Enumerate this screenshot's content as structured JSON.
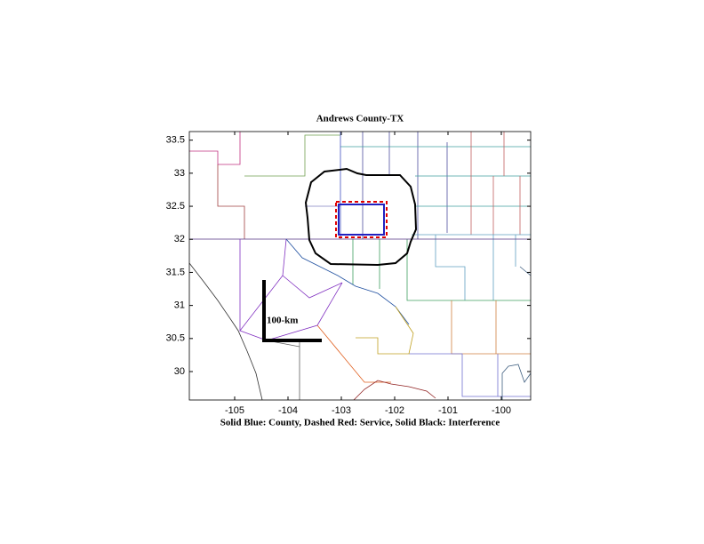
{
  "chart_data": {
    "type": "map",
    "title": "Andrews County-TX",
    "xlabel": "Solid Blue: County, Dashed Red: Service, Solid Black: Interference",
    "scale_label": "100-km",
    "xlim": [
      -105.85,
      -99.45
    ],
    "ylim": [
      29.57,
      33.63
    ],
    "xticks": [
      -105,
      -104,
      -103,
      -102,
      -101,
      -100
    ],
    "yticks": [
      30,
      30.5,
      31,
      31.5,
      32,
      32.5,
      33,
      33.5
    ]
  }
}
